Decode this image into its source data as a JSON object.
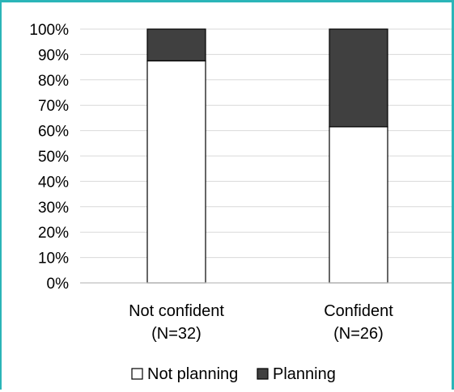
{
  "chart_data": {
    "type": "bar",
    "stacked": true,
    "percent_stacked": true,
    "categories": [
      [
        "Not confident",
        "(N=32)"
      ],
      [
        "Confident",
        "(N=26)"
      ]
    ],
    "series": [
      {
        "name": "Not planning",
        "values": [
          87.5,
          61.5
        ],
        "color": "#ffffff"
      },
      {
        "name": "Planning",
        "values": [
          12.5,
          38.5
        ],
        "color": "#404040"
      }
    ],
    "ylim": [
      0,
      100
    ],
    "yticks": [
      "0%",
      "10%",
      "20%",
      "30%",
      "40%",
      "50%",
      "60%",
      "70%",
      "80%",
      "90%",
      "100%"
    ],
    "grid": true,
    "legend": "bottom",
    "title": "",
    "xlabel": "",
    "ylabel": ""
  }
}
